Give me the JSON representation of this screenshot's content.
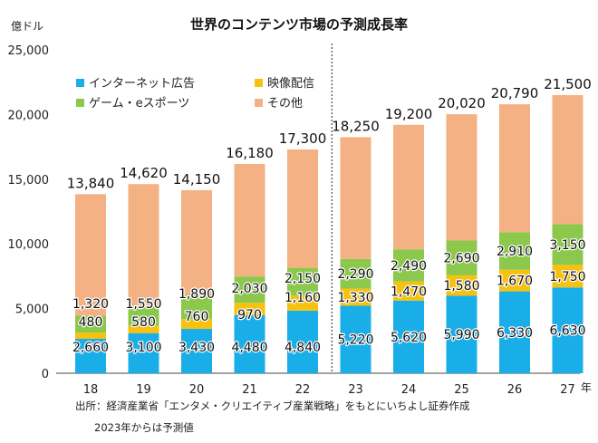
{
  "chart_data": {
    "type": "bar",
    "stacked": true,
    "title": "世界のコンテンツ市場の予測成長率",
    "ylabel": "億ドル",
    "xlabel": "年",
    "ylim": [
      0,
      25000
    ],
    "yticks": [
      "0",
      "5,000",
      "10,000",
      "15,000",
      "20,000",
      "25,000"
    ],
    "ytick_values": [
      0,
      5000,
      10000,
      15000,
      20000,
      25000
    ],
    "categories": [
      "18",
      "19",
      "20",
      "21",
      "22",
      "23",
      "24",
      "25",
      "26",
      "27"
    ],
    "forecast_start_index": 5,
    "grid": false,
    "legend_position": "top-left",
    "series": [
      {
        "name": "インターネット広告",
        "color": "#1aaee8",
        "values": [
          2660,
          3100,
          3430,
          4480,
          4840,
          5220,
          5620,
          5990,
          6330,
          6630
        ],
        "labels": [
          "2,660",
          "3,100",
          "3,430",
          "4,480",
          "4,840",
          "5,220",
          "5,620",
          "5,990",
          "6,330",
          "6,630"
        ]
      },
      {
        "name": "映像配信",
        "color": "#f6c20f",
        "values": [
          480,
          580,
          760,
          970,
          1160,
          1330,
          1470,
          1580,
          1670,
          1750
        ],
        "labels": [
          "480",
          "580",
          "760",
          "970",
          "1,160",
          "1,330",
          "1,470",
          "1,580",
          "1,670",
          "1,750"
        ]
      },
      {
        "name": "ゲーム・eスポーツ",
        "color": "#8cc84b",
        "values": [
          1320,
          1550,
          1890,
          2030,
          2150,
          2290,
          2490,
          2690,
          2910,
          3150
        ],
        "labels": [
          "1,320",
          "1,550",
          "1,890",
          "2,030",
          "2,150",
          "2,290",
          "2,490",
          "2,690",
          "2,910",
          "3,150"
        ]
      },
      {
        "name": "その他",
        "color": "#f4b183",
        "values": [
          9380,
          9390,
          8070,
          8700,
          9150,
          9410,
          9620,
          9760,
          9880,
          9970
        ],
        "labels": []
      }
    ],
    "totals": [
      13840,
      14620,
      14150,
      16180,
      17300,
      18250,
      19200,
      20020,
      20790,
      21500
    ],
    "total_labels": [
      "13,840",
      "14,620",
      "14,150",
      "16,180",
      "17,300",
      "18,250",
      "19,200",
      "20,020",
      "20,790",
      "21,500"
    ]
  },
  "notes": {
    "source": "出所：経済産業省「エンタメ・クリエイティブ産業戦略」をもとにいちよし証券作成",
    "forecast": "2023年からは予測値"
  }
}
